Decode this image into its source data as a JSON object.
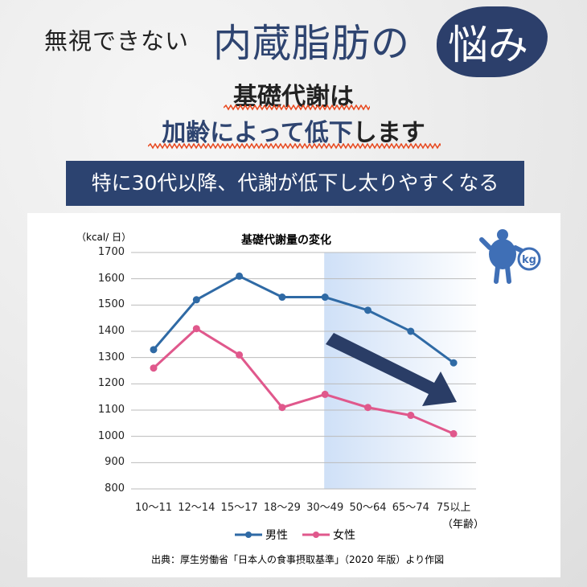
{
  "header": {
    "lead": "無視できない",
    "main": "内蔵脂肪の",
    "badge": "悩み"
  },
  "subtitle": {
    "line1": "基礎代謝は",
    "line2_accent": "加齢によって低下",
    "line2_rest": "します"
  },
  "banner": "特に30代以降、代謝が低下し太りやすくなる",
  "icon": {
    "label": "kg"
  },
  "colors": {
    "navy": "#2c4370",
    "male": "#2f6aa5",
    "female": "#e0588c",
    "wave": "#e8471d"
  },
  "chart_data": {
    "type": "line",
    "title": "基礎代謝量の変化",
    "ylabel": "（kcal/ 日）",
    "xlabel": "（年齢）",
    "categories": [
      "10〜11",
      "12〜14",
      "15〜17",
      "18〜29",
      "30〜49",
      "50〜64",
      "65〜74",
      "75以上"
    ],
    "yticks": [
      "1700",
      "1600",
      "1500",
      "1400",
      "1300",
      "1200",
      "1100",
      "1000",
      "900",
      "800"
    ],
    "ylim": [
      800,
      1700
    ],
    "grid": true,
    "highlight_from": "30〜49",
    "legend_position": "bottom",
    "series": [
      {
        "name": "男性",
        "values": [
          1330,
          1520,
          1610,
          1530,
          1530,
          1480,
          1400,
          1280
        ]
      },
      {
        "name": "女性",
        "values": [
          1260,
          1410,
          1310,
          1110,
          1160,
          1110,
          1080,
          1010
        ]
      }
    ]
  },
  "source": "出典：厚生労働省「日本人の食事摂取基準」（2020 年版）より作図"
}
